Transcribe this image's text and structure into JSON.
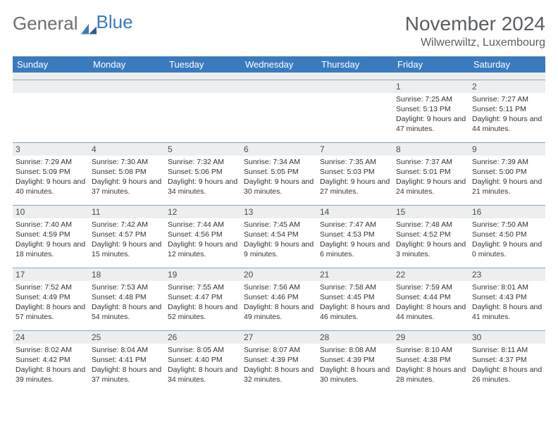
{
  "brand": {
    "part1": "General",
    "part2": "Blue"
  },
  "title": "November 2024",
  "location": "Wilwerwiltz, Luxembourg",
  "day_headers": [
    "Sunday",
    "Monday",
    "Tuesday",
    "Wednesday",
    "Thursday",
    "Friday",
    "Saturday"
  ],
  "colors": {
    "header_bg": "#3a7bbf",
    "header_text": "#ffffff",
    "daynum_bg": "#eceeef",
    "border": "#8fa6b8",
    "title_text": "#5a5e62",
    "logo_gray": "#6b6f73"
  },
  "weeks": [
    [
      {
        "num": "",
        "sunrise": "",
        "sunset": "",
        "daylight": ""
      },
      {
        "num": "",
        "sunrise": "",
        "sunset": "",
        "daylight": ""
      },
      {
        "num": "",
        "sunrise": "",
        "sunset": "",
        "daylight": ""
      },
      {
        "num": "",
        "sunrise": "",
        "sunset": "",
        "daylight": ""
      },
      {
        "num": "",
        "sunrise": "",
        "sunset": "",
        "daylight": ""
      },
      {
        "num": "1",
        "sunrise": "Sunrise: 7:25 AM",
        "sunset": "Sunset: 5:13 PM",
        "daylight": "Daylight: 9 hours and 47 minutes."
      },
      {
        "num": "2",
        "sunrise": "Sunrise: 7:27 AM",
        "sunset": "Sunset: 5:11 PM",
        "daylight": "Daylight: 9 hours and 44 minutes."
      }
    ],
    [
      {
        "num": "3",
        "sunrise": "Sunrise: 7:29 AM",
        "sunset": "Sunset: 5:09 PM",
        "daylight": "Daylight: 9 hours and 40 minutes."
      },
      {
        "num": "4",
        "sunrise": "Sunrise: 7:30 AM",
        "sunset": "Sunset: 5:08 PM",
        "daylight": "Daylight: 9 hours and 37 minutes."
      },
      {
        "num": "5",
        "sunrise": "Sunrise: 7:32 AM",
        "sunset": "Sunset: 5:06 PM",
        "daylight": "Daylight: 9 hours and 34 minutes."
      },
      {
        "num": "6",
        "sunrise": "Sunrise: 7:34 AM",
        "sunset": "Sunset: 5:05 PM",
        "daylight": "Daylight: 9 hours and 30 minutes."
      },
      {
        "num": "7",
        "sunrise": "Sunrise: 7:35 AM",
        "sunset": "Sunset: 5:03 PM",
        "daylight": "Daylight: 9 hours and 27 minutes."
      },
      {
        "num": "8",
        "sunrise": "Sunrise: 7:37 AM",
        "sunset": "Sunset: 5:01 PM",
        "daylight": "Daylight: 9 hours and 24 minutes."
      },
      {
        "num": "9",
        "sunrise": "Sunrise: 7:39 AM",
        "sunset": "Sunset: 5:00 PM",
        "daylight": "Daylight: 9 hours and 21 minutes."
      }
    ],
    [
      {
        "num": "10",
        "sunrise": "Sunrise: 7:40 AM",
        "sunset": "Sunset: 4:59 PM",
        "daylight": "Daylight: 9 hours and 18 minutes."
      },
      {
        "num": "11",
        "sunrise": "Sunrise: 7:42 AM",
        "sunset": "Sunset: 4:57 PM",
        "daylight": "Daylight: 9 hours and 15 minutes."
      },
      {
        "num": "12",
        "sunrise": "Sunrise: 7:44 AM",
        "sunset": "Sunset: 4:56 PM",
        "daylight": "Daylight: 9 hours and 12 minutes."
      },
      {
        "num": "13",
        "sunrise": "Sunrise: 7:45 AM",
        "sunset": "Sunset: 4:54 PM",
        "daylight": "Daylight: 9 hours and 9 minutes."
      },
      {
        "num": "14",
        "sunrise": "Sunrise: 7:47 AM",
        "sunset": "Sunset: 4:53 PM",
        "daylight": "Daylight: 9 hours and 6 minutes."
      },
      {
        "num": "15",
        "sunrise": "Sunrise: 7:48 AM",
        "sunset": "Sunset: 4:52 PM",
        "daylight": "Daylight: 9 hours and 3 minutes."
      },
      {
        "num": "16",
        "sunrise": "Sunrise: 7:50 AM",
        "sunset": "Sunset: 4:50 PM",
        "daylight": "Daylight: 9 hours and 0 minutes."
      }
    ],
    [
      {
        "num": "17",
        "sunrise": "Sunrise: 7:52 AM",
        "sunset": "Sunset: 4:49 PM",
        "daylight": "Daylight: 8 hours and 57 minutes."
      },
      {
        "num": "18",
        "sunrise": "Sunrise: 7:53 AM",
        "sunset": "Sunset: 4:48 PM",
        "daylight": "Daylight: 8 hours and 54 minutes."
      },
      {
        "num": "19",
        "sunrise": "Sunrise: 7:55 AM",
        "sunset": "Sunset: 4:47 PM",
        "daylight": "Daylight: 8 hours and 52 minutes."
      },
      {
        "num": "20",
        "sunrise": "Sunrise: 7:56 AM",
        "sunset": "Sunset: 4:46 PM",
        "daylight": "Daylight: 8 hours and 49 minutes."
      },
      {
        "num": "21",
        "sunrise": "Sunrise: 7:58 AM",
        "sunset": "Sunset: 4:45 PM",
        "daylight": "Daylight: 8 hours and 46 minutes."
      },
      {
        "num": "22",
        "sunrise": "Sunrise: 7:59 AM",
        "sunset": "Sunset: 4:44 PM",
        "daylight": "Daylight: 8 hours and 44 minutes."
      },
      {
        "num": "23",
        "sunrise": "Sunrise: 8:01 AM",
        "sunset": "Sunset: 4:43 PM",
        "daylight": "Daylight: 8 hours and 41 minutes."
      }
    ],
    [
      {
        "num": "24",
        "sunrise": "Sunrise: 8:02 AM",
        "sunset": "Sunset: 4:42 PM",
        "daylight": "Daylight: 8 hours and 39 minutes."
      },
      {
        "num": "25",
        "sunrise": "Sunrise: 8:04 AM",
        "sunset": "Sunset: 4:41 PM",
        "daylight": "Daylight: 8 hours and 37 minutes."
      },
      {
        "num": "26",
        "sunrise": "Sunrise: 8:05 AM",
        "sunset": "Sunset: 4:40 PM",
        "daylight": "Daylight: 8 hours and 34 minutes."
      },
      {
        "num": "27",
        "sunrise": "Sunrise: 8:07 AM",
        "sunset": "Sunset: 4:39 PM",
        "daylight": "Daylight: 8 hours and 32 minutes."
      },
      {
        "num": "28",
        "sunrise": "Sunrise: 8:08 AM",
        "sunset": "Sunset: 4:39 PM",
        "daylight": "Daylight: 8 hours and 30 minutes."
      },
      {
        "num": "29",
        "sunrise": "Sunrise: 8:10 AM",
        "sunset": "Sunset: 4:38 PM",
        "daylight": "Daylight: 8 hours and 28 minutes."
      },
      {
        "num": "30",
        "sunrise": "Sunrise: 8:11 AM",
        "sunset": "Sunset: 4:37 PM",
        "daylight": "Daylight: 8 hours and 26 minutes."
      }
    ]
  ]
}
